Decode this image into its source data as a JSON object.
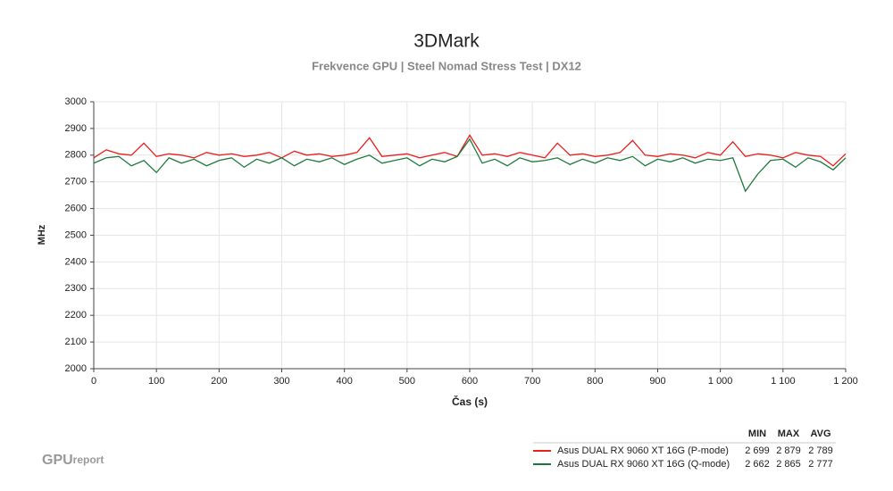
{
  "chart_data": {
    "type": "line",
    "title": "3DMark",
    "subtitle": "Frekvence GPU | Steel Nomad Stress Test | DX12",
    "x_label": "Čas (s)",
    "y_label": "MHz",
    "x": [
      0,
      20,
      40,
      60,
      80,
      100,
      120,
      140,
      160,
      180,
      200,
      220,
      240,
      260,
      280,
      300,
      320,
      340,
      360,
      380,
      400,
      420,
      440,
      460,
      480,
      500,
      520,
      540,
      560,
      580,
      600,
      620,
      640,
      660,
      680,
      700,
      720,
      740,
      760,
      780,
      800,
      820,
      840,
      860,
      880,
      900,
      920,
      940,
      960,
      980,
      1000,
      1020,
      1040,
      1060,
      1080,
      1100,
      1120,
      1140,
      1160,
      1180,
      1200
    ],
    "series": [
      {
        "name": "Asus DUAL RX 9060 XT 16G (P-mode)",
        "color": "#e8201e",
        "values": [
          2790,
          2820,
          2805,
          2800,
          2845,
          2795,
          2805,
          2800,
          2790,
          2810,
          2800,
          2805,
          2795,
          2800,
          2810,
          2790,
          2815,
          2800,
          2805,
          2795,
          2800,
          2810,
          2865,
          2795,
          2800,
          2805,
          2790,
          2800,
          2810,
          2795,
          2875,
          2800,
          2805,
          2795,
          2810,
          2800,
          2790,
          2845,
          2800,
          2805,
          2795,
          2800,
          2810,
          2855,
          2800,
          2795,
          2805,
          2800,
          2790,
          2810,
          2800,
          2850,
          2795,
          2805,
          2800,
          2790,
          2810,
          2800,
          2795,
          2760,
          2805
        ],
        "stats": [
          {
            "value": 2699,
            "label": "2 699"
          },
          {
            "value": 2879,
            "label": "2 879"
          },
          {
            "value": 2789,
            "label": "2 789"
          }
        ]
      },
      {
        "name": "Asus DUAL RX 9060 XT 16G (Q-mode)",
        "color": "#1e7a3c",
        "values": [
          2770,
          2790,
          2795,
          2760,
          2780,
          2735,
          2790,
          2770,
          2785,
          2760,
          2780,
          2790,
          2755,
          2785,
          2770,
          2790,
          2760,
          2785,
          2775,
          2790,
          2765,
          2785,
          2800,
          2770,
          2780,
          2790,
          2760,
          2785,
          2775,
          2795,
          2860,
          2770,
          2785,
          2760,
          2790,
          2775,
          2780,
          2790,
          2765,
          2785,
          2770,
          2790,
          2780,
          2795,
          2760,
          2785,
          2775,
          2790,
          2770,
          2785,
          2780,
          2790,
          2665,
          2730,
          2780,
          2785,
          2755,
          2790,
          2775,
          2745,
          2790
        ],
        "stats": [
          {
            "value": 2662,
            "label": "2 662"
          },
          {
            "value": 2865,
            "label": "2 865"
          },
          {
            "value": 2777,
            "label": "2 777"
          }
        ]
      }
    ],
    "stat_headers": [
      "MIN",
      "MAX",
      "AVG"
    ],
    "xlim": [
      0,
      1200
    ],
    "xticks": [
      0,
      100,
      200,
      300,
      400,
      500,
      600,
      700,
      800,
      900,
      {
        "value": 1000,
        "label": "1 000"
      },
      {
        "value": 1100,
        "label": "1 100"
      },
      {
        "value": 1200,
        "label": "1 200"
      }
    ],
    "ylim": [
      2000,
      3000
    ],
    "yticks": [
      2000,
      2100,
      2200,
      2300,
      2400,
      2500,
      2600,
      2700,
      2800,
      2900,
      3000
    ],
    "grid": true,
    "logo": {
      "main": "GPU",
      "sub": "report"
    }
  }
}
